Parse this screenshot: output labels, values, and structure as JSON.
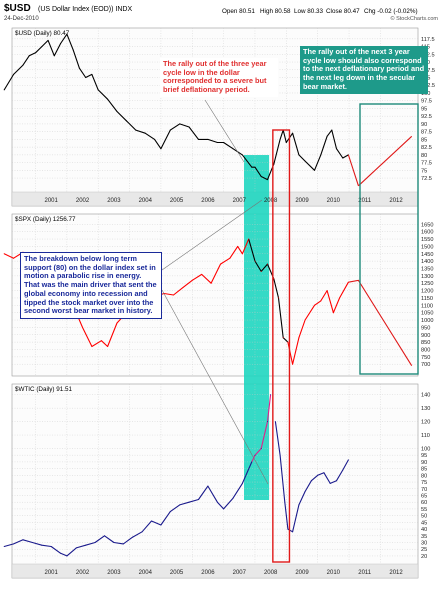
{
  "header": {
    "symbol": "$USD",
    "description": "(US Dollar Index (EOD)) INDX",
    "date": "24-Dec-2010",
    "open": "Open 80.51",
    "high": "High 80.58",
    "low": "Low 80.33",
    "close": "Close 80.47",
    "change": "Chg -0.02 (-0.02%)",
    "watermark": "© StockCharts.com"
  },
  "colors": {
    "dollar": "#000000",
    "spx": "#ff0000",
    "spx_crash": "#000000",
    "oil": "#1a1a8c",
    "oil_spike": "#e0208c",
    "projection": "#e01818",
    "highlight": "#1fd6c0",
    "red_box": "#e01818",
    "teal_box": "#1e8a7a",
    "panel_bg": "#fcfcfc",
    "grid": "#c8c8c8",
    "label_strip": "#e8e8e8"
  },
  "chart_data": [
    {
      "type": "line",
      "panel": "top",
      "legend": "$USD (Daily) 80.47",
      "x": [
        2000.0,
        2000.3,
        2000.6,
        2000.8,
        2001.0,
        2001.2,
        2001.4,
        2001.6,
        2001.8,
        2002.0,
        2002.2,
        2002.4,
        2002.6,
        2002.8,
        2003.0,
        2003.3,
        2003.6,
        2003.9,
        2004.2,
        2004.5,
        2004.8,
        2005.0,
        2005.3,
        2005.6,
        2005.9,
        2006.2,
        2006.5,
        2006.8,
        2007.0,
        2007.3,
        2007.6,
        2007.9,
        2008.0,
        2008.2,
        2008.4,
        2008.6,
        2008.8,
        2008.9,
        2009.0,
        2009.2,
        2009.4,
        2009.6,
        2009.9,
        2010.1,
        2010.3,
        2010.45,
        2010.6,
        2010.8,
        2010.98
      ],
      "y": [
        101,
        106,
        109,
        112,
        113,
        115,
        117,
        112,
        116,
        119,
        114,
        108,
        105,
        106,
        101,
        98,
        94,
        91,
        88,
        87,
        85,
        82,
        88,
        90,
        89,
        85,
        85,
        84,
        84,
        82,
        80,
        76,
        76,
        73,
        72,
        77,
        85,
        88,
        84,
        87,
        80,
        78,
        75,
        80,
        86,
        88,
        82,
        79,
        80
      ],
      "xlim": [
        2000.25,
        2013.2
      ],
      "ylim": [
        68,
        121
      ],
      "yticks": [
        72.5,
        75,
        77.5,
        80,
        82.5,
        85,
        87.5,
        90,
        92.5,
        95,
        97.5,
        100,
        102.5,
        105,
        107.5,
        110,
        112.5,
        115,
        117.5
      ],
      "xticks": [
        "2001",
        "2002",
        "2003",
        "2004",
        "2005",
        "2006",
        "2007",
        "2008",
        "2009",
        "2010",
        "2011",
        "2012"
      ],
      "projection": {
        "x": [
          2011.3,
          2013.0
        ],
        "y": [
          70,
          86
        ]
      },
      "annotation": "The rally out of the three year cycle low in the dollar corresponded to a severe but brief deflationary period."
    },
    {
      "type": "line",
      "panel": "middle",
      "legend": "$SPX (Daily) 1256.77",
      "x": [
        2000.0,
        2000.3,
        2000.6,
        2000.9,
        2001.2,
        2001.5,
        2001.7,
        2001.9,
        2002.2,
        2002.5,
        2002.8,
        2003.1,
        2003.3,
        2003.6,
        2003.9,
        2004.2,
        2004.5,
        2004.8,
        2005.1,
        2005.4,
        2005.7,
        2006.0,
        2006.3,
        2006.6,
        2006.9,
        2007.2,
        2007.45,
        2007.6,
        2007.8,
        2008.0,
        2008.2,
        2008.4,
        2008.6,
        2008.75,
        2008.9,
        2009.05,
        2009.2,
        2009.4,
        2009.6,
        2009.9,
        2010.1,
        2010.3,
        2010.5,
        2010.7,
        2010.98
      ],
      "y": [
        1450,
        1420,
        1460,
        1380,
        1250,
        1200,
        1050,
        1120,
        1100,
        950,
        820,
        860,
        820,
        980,
        1050,
        1130,
        1110,
        1160,
        1180,
        1170,
        1220,
        1270,
        1310,
        1250,
        1380,
        1420,
        1500,
        1450,
        1550,
        1400,
        1330,
        1380,
        1280,
        1150,
        880,
        850,
        700,
        880,
        1000,
        1100,
        1130,
        1200,
        1050,
        1150,
        1257
      ],
      "xlim": [
        2000.25,
        2013.2
      ],
      "ylim": [
        620,
        1720
      ],
      "yticks": [
        700,
        750,
        800,
        850,
        900,
        950,
        1000,
        1050,
        1100,
        1150,
        1200,
        1250,
        1300,
        1350,
        1400,
        1450,
        1500,
        1550,
        1600,
        1650
      ],
      "projection": {
        "x": [
          2010.98,
          2011.3,
          2013.0
        ],
        "y": [
          1257,
          1270,
          690
        ]
      }
    },
    {
      "type": "line",
      "panel": "bottom",
      "legend": "$WTIC (Daily) 91.51",
      "x": [
        2000.0,
        2000.3,
        2000.6,
        2000.9,
        2001.2,
        2001.5,
        2001.8,
        2002.0,
        2002.3,
        2002.6,
        2002.9,
        2003.2,
        2003.5,
        2003.8,
        2004.1,
        2004.4,
        2004.7,
        2005.0,
        2005.3,
        2005.6,
        2005.9,
        2006.2,
        2006.5,
        2006.8,
        2007.0,
        2007.3,
        2007.6,
        2007.9,
        2008.0,
        2008.2,
        2008.4,
        2008.5,
        2008.65,
        2008.8,
        2008.95,
        2009.05,
        2009.2,
        2009.4,
        2009.6,
        2009.8,
        2010.0,
        2010.2,
        2010.4,
        2010.6,
        2010.8,
        2010.98
      ],
      "y": [
        27,
        29,
        32,
        30,
        28,
        27,
        22,
        20,
        26,
        28,
        30,
        35,
        30,
        29,
        34,
        38,
        46,
        43,
        53,
        58,
        60,
        62,
        72,
        60,
        55,
        63,
        74,
        90,
        95,
        100,
        120,
        140,
        120,
        95,
        60,
        40,
        38,
        58,
        68,
        76,
        80,
        82,
        74,
        76,
        84,
        91.5
      ],
      "xlim": [
        2000.25,
        2013.2
      ],
      "ylim": [
        14,
        148
      ],
      "yticks": [
        20,
        25,
        30,
        35,
        40,
        45,
        50,
        55,
        60,
        65,
        70,
        75,
        80,
        85,
        90,
        95,
        100,
        110,
        120,
        130,
        140
      ],
      "xticks": [
        "2001",
        "2002",
        "2003",
        "2004",
        "2005",
        "2006",
        "2007",
        "2008",
        "2009",
        "2010",
        "2011",
        "2012"
      ],
      "spike_range": [
        2007.9,
        2008.6
      ]
    }
  ],
  "highlights": {
    "teal_band": {
      "x": [
        2007.65,
        2008.45
      ]
    },
    "red_box": {
      "x": [
        2008.57,
        2009.1
      ]
    },
    "teal_box": {
      "x": [
        2011.35,
        2013.2
      ]
    }
  },
  "annotations": {
    "red_note": "The rally out of the three year cycle low in the dollar corresponded to a severe but brief deflationary period.",
    "teal_note": "The rally out of the next 3 year cycle low should also correspond to the next deflationary period and the next leg down in the secular bear market.",
    "blue_note": "The breakdown below long term support (80) on the dollar index set in motion a parabolic rise in energy. That was the main driver that sent the global economy into recession and tipped the stock market over into the second worst bear market in history."
  }
}
